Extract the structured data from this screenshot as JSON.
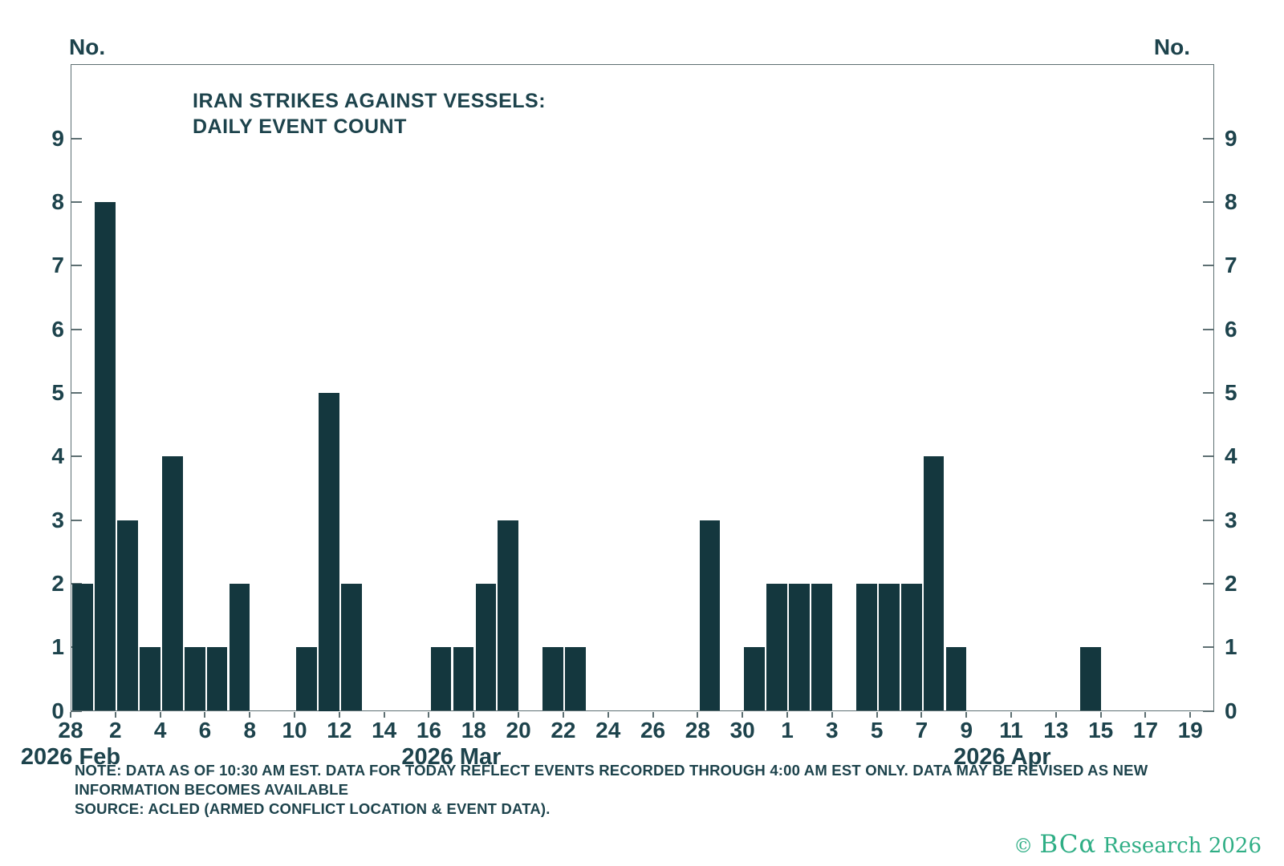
{
  "header": {
    "axis_unit_label_left": "No.",
    "axis_unit_label_right": "No.",
    "title_line1": "IRAN STRIKES AGAINST VESSELS:",
    "title_line2": "DAILY EVENT COUNT"
  },
  "footer": {
    "note_line1": "NOTE: DATA AS OF 10:30 AM EST. DATA FOR TODAY REFLECT EVENTS RECORDED THROUGH 4:00 AM EST ONLY. DATA MAY BE REVISED AS NEW",
    "note_line2": "INFORMATION BECOMES AVAILABLE",
    "note_line3": "SOURCE: ACLED (ARMED CONFLICT LOCATION & EVENT DATA).",
    "logo_copyright": "©",
    "logo_brand": "BCα",
    "logo_suffix": "Research 2026"
  },
  "colors": {
    "bar": "#14373e",
    "text": "#1d434c",
    "axis": "#5d6f72",
    "logo_green": "#2fae85",
    "background": "#ffffff"
  },
  "chart_data": {
    "type": "bar",
    "title": "IRAN STRIKES AGAINST VESSELS: DAILY EVENT COUNT",
    "ylabel": "No.",
    "xlabel": "",
    "ylim": [
      0,
      10.2
    ],
    "yticks": [
      0,
      1,
      2,
      3,
      4,
      5,
      6,
      7,
      8,
      9
    ],
    "grid": false,
    "legend": "none",
    "x_domain_start": "2026-02-28",
    "x_domain_end": "2026-04-20",
    "xticks": [
      {
        "label": "28",
        "day": 0
      },
      {
        "label": "2",
        "day": 2
      },
      {
        "label": "4",
        "day": 4
      },
      {
        "label": "6",
        "day": 6
      },
      {
        "label": "8",
        "day": 8
      },
      {
        "label": "10",
        "day": 10
      },
      {
        "label": "12",
        "day": 12
      },
      {
        "label": "14",
        "day": 14
      },
      {
        "label": "16",
        "day": 16
      },
      {
        "label": "18",
        "day": 18
      },
      {
        "label": "20",
        "day": 20
      },
      {
        "label": "22",
        "day": 22
      },
      {
        "label": "24",
        "day": 24
      },
      {
        "label": "26",
        "day": 26
      },
      {
        "label": "28",
        "day": 28
      },
      {
        "label": "30",
        "day": 30
      },
      {
        "label": "1",
        "day": 32
      },
      {
        "label": "3",
        "day": 34
      },
      {
        "label": "5",
        "day": 36
      },
      {
        "label": "7",
        "day": 38
      },
      {
        "label": "9",
        "day": 40
      },
      {
        "label": "11",
        "day": 42
      },
      {
        "label": "13",
        "day": 44
      },
      {
        "label": "15",
        "day": 46
      },
      {
        "label": "17",
        "day": 48
      },
      {
        "label": "19",
        "day": 50
      }
    ],
    "month_labels": [
      {
        "text": "2026 Feb",
        "day": 0
      },
      {
        "text": "2026 Mar",
        "day": 17
      },
      {
        "text": "2026 Apr",
        "day": 41.6
      }
    ],
    "bars": [
      {
        "date": "2026-02-28",
        "day": 0,
        "value": 2
      },
      {
        "date": "2026-03-01",
        "day": 1,
        "value": 8
      },
      {
        "date": "2026-03-02",
        "day": 2,
        "value": 3
      },
      {
        "date": "2026-03-03",
        "day": 3,
        "value": 1
      },
      {
        "date": "2026-03-04",
        "day": 4,
        "value": 4
      },
      {
        "date": "2026-03-05",
        "day": 5,
        "value": 1
      },
      {
        "date": "2026-03-06",
        "day": 6,
        "value": 1
      },
      {
        "date": "2026-03-07",
        "day": 7,
        "value": 2
      },
      {
        "date": "2026-03-10",
        "day": 10,
        "value": 1
      },
      {
        "date": "2026-03-11",
        "day": 11,
        "value": 5
      },
      {
        "date": "2026-03-12",
        "day": 12,
        "value": 2
      },
      {
        "date": "2026-03-16",
        "day": 16,
        "value": 1
      },
      {
        "date": "2026-03-17",
        "day": 17,
        "value": 1
      },
      {
        "date": "2026-03-18",
        "day": 18,
        "value": 2
      },
      {
        "date": "2026-03-19",
        "day": 19,
        "value": 3
      },
      {
        "date": "2026-03-21",
        "day": 21,
        "value": 1
      },
      {
        "date": "2026-03-22",
        "day": 22,
        "value": 1
      },
      {
        "date": "2026-03-28",
        "day": 28,
        "value": 3
      },
      {
        "date": "2026-03-30",
        "day": 30,
        "value": 1
      },
      {
        "date": "2026-03-31",
        "day": 31,
        "value": 2
      },
      {
        "date": "2026-04-01",
        "day": 32,
        "value": 2
      },
      {
        "date": "2026-04-02",
        "day": 33,
        "value": 2
      },
      {
        "date": "2026-04-04",
        "day": 35,
        "value": 2
      },
      {
        "date": "2026-04-05",
        "day": 36,
        "value": 2
      },
      {
        "date": "2026-04-06",
        "day": 37,
        "value": 2
      },
      {
        "date": "2026-04-07",
        "day": 38,
        "value": 4
      },
      {
        "date": "2026-04-08",
        "day": 39,
        "value": 1
      },
      {
        "date": "2026-04-14",
        "day": 45,
        "value": 1
      }
    ]
  }
}
